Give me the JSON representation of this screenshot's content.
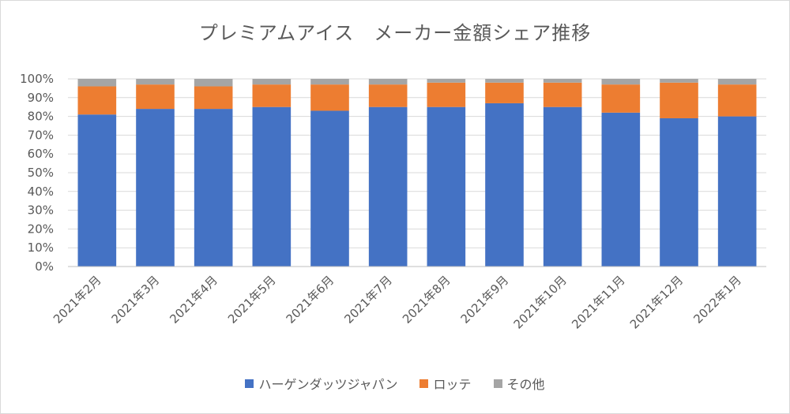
{
  "chart_data": {
    "type": "bar",
    "stacked": true,
    "title": "プレミアムアイス　メーカー金額シェア推移",
    "categories": [
      "2021年2月",
      "2021年3月",
      "2021年4月",
      "2021年5月",
      "2021年6月",
      "2021年7月",
      "2021年8月",
      "2021年9月",
      "2021年10月",
      "2021年11月",
      "2021年12月",
      "2022年1月"
    ],
    "series": [
      {
        "name": "ハーゲンダッツジャパン",
        "color": "#4472C4",
        "values": [
          81,
          84,
          84,
          85,
          83,
          85,
          85,
          87,
          85,
          82,
          79,
          80
        ]
      },
      {
        "name": "ロッテ",
        "color": "#ED7D31",
        "values": [
          15,
          13,
          12,
          12,
          14,
          12,
          13,
          11,
          13,
          15,
          19,
          17
        ]
      },
      {
        "name": "その他",
        "color": "#A5A5A5",
        "values": [
          4,
          3,
          4,
          3,
          3,
          3,
          2,
          2,
          2,
          3,
          2,
          3
        ]
      }
    ],
    "yticks": [
      "0%",
      "10%",
      "20%",
      "30%",
      "40%",
      "50%",
      "60%",
      "70%",
      "80%",
      "90%",
      "100%"
    ],
    "ylim": [
      0,
      100
    ],
    "grid": true,
    "legend_position": "bottom"
  }
}
